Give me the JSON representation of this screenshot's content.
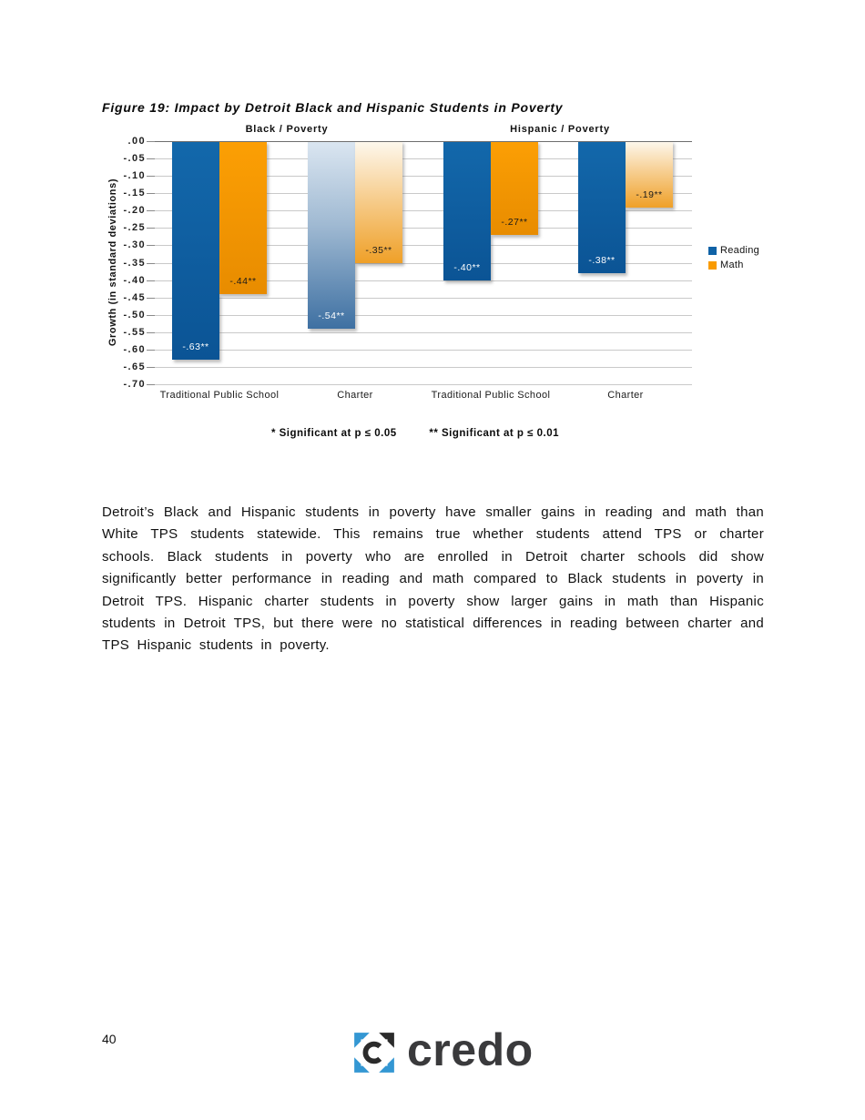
{
  "page": {
    "number": "40",
    "logo_text": "credo",
    "logo_blue": "#3497D3",
    "logo_dark": "#2B2B2B"
  },
  "chart_data": {
    "type": "bar",
    "title": "Figure 19: Impact by Detroit Black and Hispanic Students in Poverty",
    "ylabel": "Growth (in standard deviations)",
    "xlabel": "",
    "ylim": [
      -0.7,
      0.0
    ],
    "ytick_step": 0.05,
    "ytick_labels": [
      ".00",
      "-.05",
      "-.10",
      "-.15",
      "-.20",
      "-.25",
      "-.30",
      "-.35",
      "-.40",
      "-.45",
      "-.50",
      "-.55",
      "-.60",
      "-.65",
      "-.70"
    ],
    "group_headers": [
      "Black /  Poverty",
      "Hispanic /  Poverty"
    ],
    "categories": [
      "Traditional Public School",
      "Charter",
      "Traditional Public School",
      "Charter"
    ],
    "series": [
      {
        "name": "Reading",
        "color": "#0F62A6",
        "color_light": "#1368AB",
        "color_dark": "#0B5495",
        "gradient_top": "#DBE6F1",
        "gradient_mid": "#9FB9D2",
        "gradient_bottom": "#3E70A2",
        "label_color": "#FFFFFF",
        "values": [
          -0.63,
          -0.54,
          -0.4,
          -0.38
        ],
        "data_labels": [
          "-.63**",
          "-.54**",
          "-.40**",
          "-.38**"
        ],
        "gradient": [
          false,
          true,
          false,
          false
        ]
      },
      {
        "name": "Math",
        "color": "#F99B00",
        "color_light": "#FC9F04",
        "color_dark": "#E88C00",
        "gradient_top": "#FDF8EE",
        "gradient_mid": "#F7CF92",
        "gradient_bottom": "#EFA028",
        "label_color": "#1A1A1A",
        "values": [
          -0.44,
          -0.35,
          -0.27,
          -0.19
        ],
        "data_labels": [
          "-.44**",
          "-.35**",
          "-.27**",
          "-.19**"
        ],
        "gradient": [
          false,
          true,
          false,
          true
        ]
      }
    ],
    "legend_position": "right",
    "grid": true,
    "annotations": [
      "* Significant  at p ≤ 0.05",
      "** Significant  at p ≤ 0.01"
    ]
  },
  "body_text": {
    "paragraph": "Detroit’s Black and Hispanic students in poverty have smaller gains in reading and math than White TPS students statewide. This remains true whether students attend TPS or charter schools. Black students in poverty who are enrolled in Detroit charter schools did show significantly better performance in reading and math compared to Black students in poverty in Detroit TPS. Hispanic charter students in poverty show larger gains in math than Hispanic students in Detroit TPS, but there were no statistical differences in reading between charter and TPS Hispanic students in poverty."
  }
}
